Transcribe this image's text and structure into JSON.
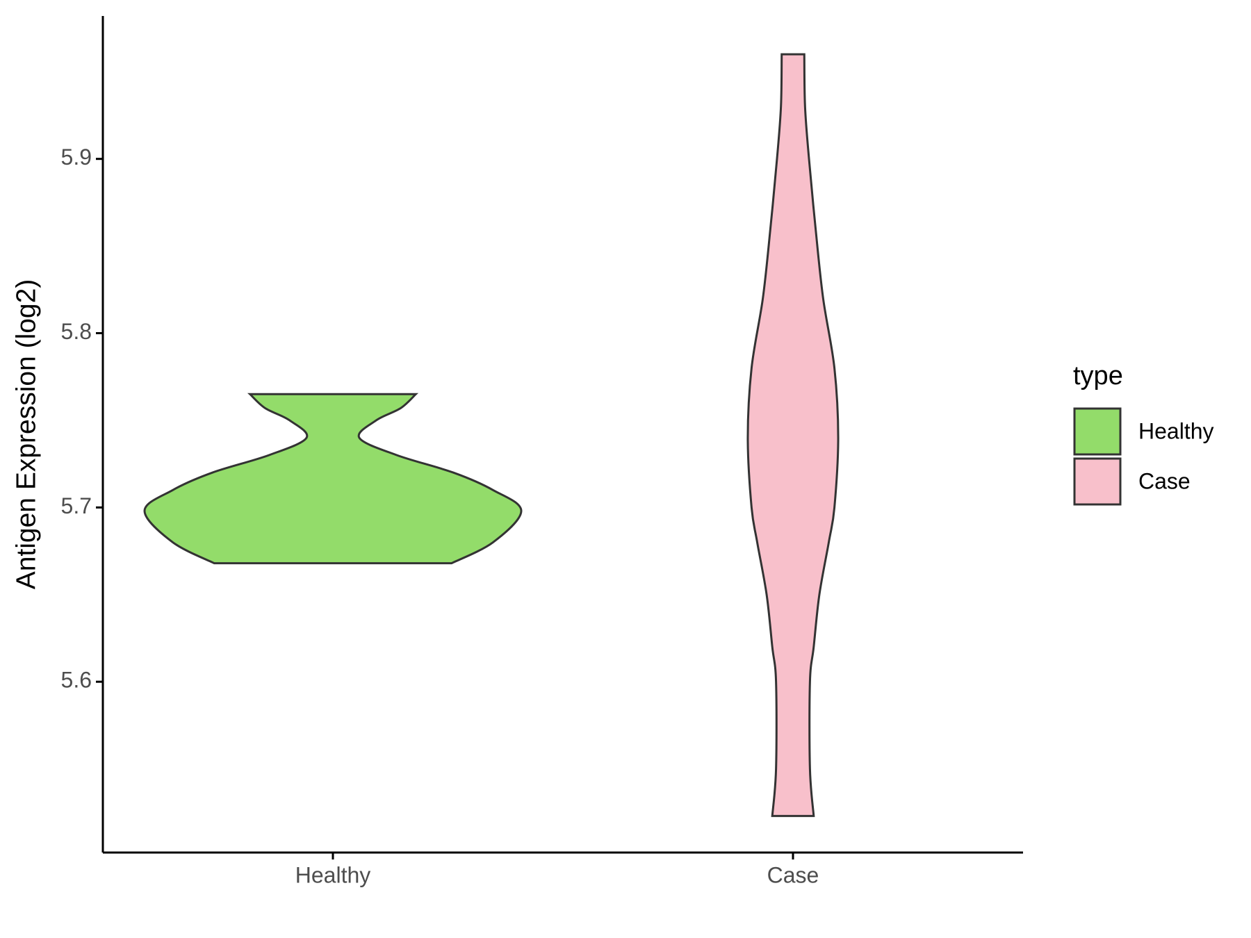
{
  "chart_data": {
    "type": "violin",
    "y_label": "Antigen Expression (log2)",
    "categories": [
      "Healthy",
      "Case"
    ],
    "series": [
      {
        "name": "Healthy",
        "color": "#93dc6a",
        "y": [
          5.668,
          5.68,
          5.698,
          5.71,
          5.72,
          5.73,
          5.74,
          5.75,
          5.757,
          5.765
        ],
        "density": [
          0.63,
          0.85,
          1,
          0.85,
          0.64,
          0.34,
          0.14,
          0.23,
          0.36,
          0.44
        ]
      },
      {
        "name": "Case",
        "color": "#f8c0cb",
        "y": [
          5.523,
          5.55,
          5.6,
          5.62,
          5.65,
          5.68,
          5.7,
          5.74,
          5.78,
          5.82,
          5.86,
          5.9,
          5.93,
          5.96
        ],
        "density": [
          0.11,
          0.09,
          0.09,
          0.11,
          0.14,
          0.19,
          0.22,
          0.24,
          0.22,
          0.16,
          0.12,
          0.085,
          0.064,
          0.06
        ]
      }
    ],
    "ylim": [
      5.502,
      5.982
    ],
    "yticks": [
      5.6,
      5.7,
      5.8,
      5.9
    ],
    "legend": {
      "title": "type",
      "position": "right"
    }
  }
}
